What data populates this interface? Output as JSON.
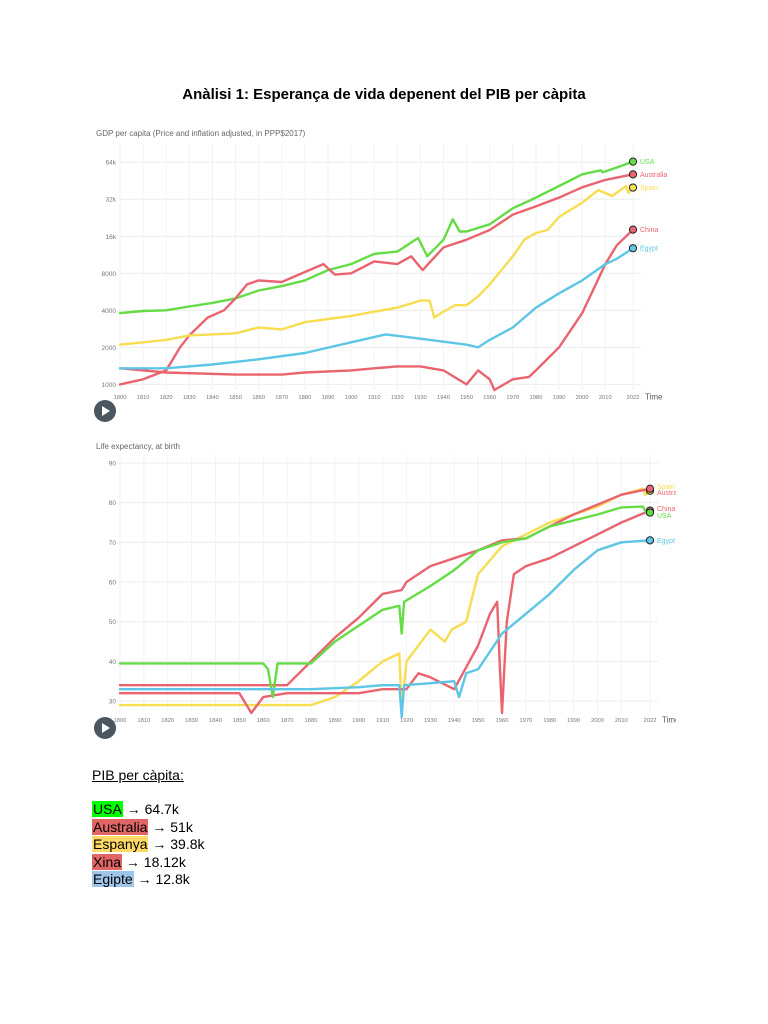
{
  "doc_title": "Anàlisi 1: Esperança de vida depenent del PIB per càpita",
  "colors": {
    "usa": "#64dc46",
    "australia": "#ea6470",
    "spain": "#f7dd50",
    "china": "#ea6470",
    "egypt": "#5dc6e6"
  },
  "chart_data": [
    {
      "type": "line",
      "title": "GDP per capita (Price and inflation adjusted, in PPP$2017)",
      "xlabel": "Time",
      "ylabel": "",
      "yscale": "log",
      "xlim": [
        1800,
        2022
      ],
      "ylim": [
        900,
        90000
      ],
      "x_ticks": [
        1800,
        1810,
        1820,
        1830,
        1840,
        1850,
        1860,
        1870,
        1880,
        1890,
        1900,
        1910,
        1920,
        1930,
        1940,
        1950,
        1960,
        1970,
        1980,
        1990,
        2000,
        2010,
        2022
      ],
      "y_ticks": [
        1000,
        2000,
        4000,
        8000,
        16000,
        32000,
        64000
      ],
      "y_tick_labels": [
        "1000",
        "2000",
        "4000",
        "8000",
        "16k",
        "32k",
        "64k"
      ],
      "legend_placement": "right, at line ends",
      "series": [
        {
          "name": "USA",
          "color": "#64dc46",
          "points": [
            [
              1800,
              3800
            ],
            [
              1810,
              3950
            ],
            [
              1820,
              4000
            ],
            [
              1830,
              4300
            ],
            [
              1840,
              4600
            ],
            [
              1850,
              5000
            ],
            [
              1860,
              5800
            ],
            [
              1870,
              6300
            ],
            [
              1880,
              7000
            ],
            [
              1890,
              8500
            ],
            [
              1900,
              9500
            ],
            [
              1910,
              11500
            ],
            [
              1920,
              12000
            ],
            [
              1929,
              15500
            ],
            [
              1933,
              11000
            ],
            [
              1940,
              15000
            ],
            [
              1944,
              22000
            ],
            [
              1947,
              17500
            ],
            [
              1950,
              17500
            ],
            [
              1960,
              20000
            ],
            [
              1970,
              27000
            ],
            [
              1980,
              33000
            ],
            [
              1990,
              41000
            ],
            [
              2000,
              51000
            ],
            [
              2008,
              55000
            ],
            [
              2009,
              53000
            ],
            [
              2015,
              58000
            ],
            [
              2022,
              64700
            ]
          ]
        },
        {
          "name": "Australia",
          "color": "#ea6470",
          "points": [
            [
              1800,
              1000
            ],
            [
              1810,
              1100
            ],
            [
              1820,
              1300
            ],
            [
              1826,
              2000
            ],
            [
              1830,
              2500
            ],
            [
              1838,
              3500
            ],
            [
              1845,
              4000
            ],
            [
              1850,
              5000
            ],
            [
              1855,
              6500
            ],
            [
              1860,
              7000
            ],
            [
              1870,
              6800
            ],
            [
              1880,
              8200
            ],
            [
              1888,
              9500
            ],
            [
              1893,
              7800
            ],
            [
              1900,
              8000
            ],
            [
              1910,
              10000
            ],
            [
              1920,
              9500
            ],
            [
              1926,
              11000
            ],
            [
              1931,
              8500
            ],
            [
              1940,
              13000
            ],
            [
              1950,
              15000
            ],
            [
              1960,
              18000
            ],
            [
              1970,
              24000
            ],
            [
              1980,
              28000
            ],
            [
              1990,
              33000
            ],
            [
              2000,
              40000
            ],
            [
              2010,
              46000
            ],
            [
              2022,
              51000
            ]
          ]
        },
        {
          "name": "Spain",
          "color": "#f7dd50",
          "points": [
            [
              1800,
              2100
            ],
            [
              1820,
              2300
            ],
            [
              1830,
              2500
            ],
            [
              1850,
              2600
            ],
            [
              1860,
              2900
            ],
            [
              1870,
              2800
            ],
            [
              1880,
              3200
            ],
            [
              1890,
              3400
            ],
            [
              1900,
              3600
            ],
            [
              1910,
              3900
            ],
            [
              1920,
              4200
            ],
            [
              1930,
              4800
            ],
            [
              1934,
              4800
            ],
            [
              1936,
              3500
            ],
            [
              1939,
              3800
            ],
            [
              1945,
              4400
            ],
            [
              1950,
              4400
            ],
            [
              1955,
              5200
            ],
            [
              1960,
              6500
            ],
            [
              1970,
              11000
            ],
            [
              1975,
              15000
            ],
            [
              1980,
              17000
            ],
            [
              1985,
              18000
            ],
            [
              1990,
              23000
            ],
            [
              2000,
              30000
            ],
            [
              2007,
              38000
            ],
            [
              2013,
              34000
            ],
            [
              2019,
              41000
            ],
            [
              2020,
              36000
            ],
            [
              2022,
              39800
            ]
          ]
        },
        {
          "name": "China",
          "color": "#ea6470",
          "points": [
            [
              1800,
              1350
            ],
            [
              1820,
              1250
            ],
            [
              1850,
              1200
            ],
            [
              1870,
              1200
            ],
            [
              1880,
              1250
            ],
            [
              1900,
              1300
            ],
            [
              1910,
              1350
            ],
            [
              1920,
              1400
            ],
            [
              1930,
              1400
            ],
            [
              1940,
              1300
            ],
            [
              1950,
              1000
            ],
            [
              1955,
              1300
            ],
            [
              1960,
              1100
            ],
            [
              1962,
              900
            ],
            [
              1970,
              1100
            ],
            [
              1977,
              1150
            ],
            [
              1980,
              1300
            ],
            [
              1990,
              2000
            ],
            [
              2000,
              3800
            ],
            [
              2010,
              9500
            ],
            [
              2015,
              13500
            ],
            [
              2022,
              18120
            ]
          ]
        },
        {
          "name": "Egypt",
          "color": "#5dc6e6",
          "points": [
            [
              1800,
              1350
            ],
            [
              1820,
              1350
            ],
            [
              1840,
              1450
            ],
            [
              1860,
              1600
            ],
            [
              1880,
              1800
            ],
            [
              1900,
              2200
            ],
            [
              1915,
              2550
            ],
            [
              1930,
              2350
            ],
            [
              1950,
              2100
            ],
            [
              1955,
              2000
            ],
            [
              1960,
              2300
            ],
            [
              1970,
              2900
            ],
            [
              1980,
              4200
            ],
            [
              1990,
              5500
            ],
            [
              2000,
              7000
            ],
            [
              2010,
              9500
            ],
            [
              2015,
              10500
            ],
            [
              2022,
              12800
            ]
          ]
        }
      ]
    },
    {
      "type": "line",
      "title": "Life expectancy, at birth",
      "xlabel": "Time",
      "ylabel": "",
      "xlim": [
        1800,
        2022
      ],
      "ylim": [
        27,
        92
      ],
      "x_ticks": [
        1800,
        1810,
        1820,
        1830,
        1840,
        1850,
        1860,
        1870,
        1880,
        1890,
        1900,
        1910,
        1920,
        1930,
        1940,
        1950,
        1960,
        1970,
        1980,
        1990,
        2000,
        2010,
        2022
      ],
      "y_ticks": [
        30,
        40,
        50,
        60,
        70,
        80,
        90
      ],
      "legend_placement": "right, at line ends",
      "series": [
        {
          "name": "Spain",
          "color": "#f7dd50",
          "points": [
            [
              1800,
              29
            ],
            [
              1860,
              29
            ],
            [
              1880,
              29
            ],
            [
              1890,
              31
            ],
            [
              1900,
              35
            ],
            [
              1910,
              40
            ],
            [
              1917,
              42
            ],
            [
              1918,
              28
            ],
            [
              1920,
              40
            ],
            [
              1930,
              48
            ],
            [
              1936,
              45
            ],
            [
              1939,
              48
            ],
            [
              1945,
              50
            ],
            [
              1950,
              62
            ],
            [
              1960,
              69
            ],
            [
              1970,
              72
            ],
            [
              1980,
              75
            ],
            [
              1990,
              77
            ],
            [
              2000,
              79
            ],
            [
              2010,
              82
            ],
            [
              2019,
              83.5
            ],
            [
              2020,
              82
            ],
            [
              2022,
              83
            ]
          ]
        },
        {
          "name": "Australia",
          "color": "#ea6470",
          "points": [
            [
              1800,
              34
            ],
            [
              1860,
              34
            ],
            [
              1870,
              34
            ],
            [
              1880,
              40
            ],
            [
              1890,
              46
            ],
            [
              1900,
              51
            ],
            [
              1910,
              57
            ],
            [
              1918,
              58
            ],
            [
              1920,
              60
            ],
            [
              1930,
              64
            ],
            [
              1940,
              66
            ],
            [
              1950,
              68
            ],
            [
              1960,
              70.5
            ],
            [
              1970,
              71
            ],
            [
              1980,
              74
            ],
            [
              1990,
              77
            ],
            [
              2000,
              79.5
            ],
            [
              2010,
              82
            ],
            [
              2022,
              83.5
            ]
          ]
        },
        {
          "name": "China",
          "color": "#ea6470",
          "points": [
            [
              1800,
              32
            ],
            [
              1840,
              32
            ],
            [
              1850,
              32
            ],
            [
              1855,
              27
            ],
            [
              1860,
              31
            ],
            [
              1870,
              32
            ],
            [
              1900,
              32
            ],
            [
              1910,
              33
            ],
            [
              1920,
              33
            ],
            [
              1925,
              37
            ],
            [
              1930,
              36
            ],
            [
              1940,
              33
            ],
            [
              1950,
              44
            ],
            [
              1955,
              52
            ],
            [
              1958,
              55
            ],
            [
              1959,
              40
            ],
            [
              1960,
              27
            ],
            [
              1962,
              50
            ],
            [
              1965,
              62
            ],
            [
              1970,
              64
            ],
            [
              1980,
              66
            ],
            [
              1990,
              69
            ],
            [
              2000,
              72
            ],
            [
              2010,
              75
            ],
            [
              2022,
              78
            ]
          ]
        },
        {
          "name": "USA",
          "color": "#64dc46",
          "points": [
            [
              1800,
              39.5
            ],
            [
              1860,
              39.5
            ],
            [
              1862,
              38
            ],
            [
              1864,
              31
            ],
            [
              1866,
              39.5
            ],
            [
              1880,
              39.5
            ],
            [
              1890,
              45
            ],
            [
              1900,
              49
            ],
            [
              1910,
              53
            ],
            [
              1917,
              54
            ],
            [
              1918,
              47
            ],
            [
              1919,
              55
            ],
            [
              1930,
              59
            ],
            [
              1940,
              63
            ],
            [
              1950,
              68
            ],
            [
              1960,
              70
            ],
            [
              1970,
              71
            ],
            [
              1980,
              74
            ],
            [
              1990,
              75.5
            ],
            [
              2000,
              77
            ],
            [
              2010,
              78.8
            ],
            [
              2019,
              79
            ],
            [
              2021,
              77
            ],
            [
              2022,
              77.5
            ]
          ]
        },
        {
          "name": "Egypt",
          "color": "#5dc6e6",
          "points": [
            [
              1800,
              33
            ],
            [
              1850,
              33
            ],
            [
              1870,
              33
            ],
            [
              1880,
              33
            ],
            [
              1900,
              33.5
            ],
            [
              1910,
              34
            ],
            [
              1917,
              34
            ],
            [
              1918,
              26
            ],
            [
              1919,
              34
            ],
            [
              1930,
              34.5
            ],
            [
              1940,
              35
            ],
            [
              1942,
              31
            ],
            [
              1945,
              37
            ],
            [
              1950,
              38
            ],
            [
              1960,
              47
            ],
            [
              1970,
              52
            ],
            [
              1980,
              57
            ],
            [
              1990,
              63
            ],
            [
              2000,
              68
            ],
            [
              2010,
              70
            ],
            [
              2022,
              70.5
            ]
          ]
        }
      ]
    }
  ],
  "summary": {
    "heading": "PIB per càpita:",
    "rows": [
      {
        "name": "USA",
        "value": "→ 64.7k",
        "color": "#00ff00"
      },
      {
        "name": "Australia",
        "value": "→ 51k",
        "color": "#e06666"
      },
      {
        "name": "Espanya",
        "value": "→ 39.8k",
        "color": "#ffd966"
      },
      {
        "name": "Xina",
        "value": "→ 18.12k",
        "color": "#e06666"
      },
      {
        "name": "Egipte",
        "value": "→ 12.8k",
        "color": "#9fc5e8"
      }
    ]
  }
}
